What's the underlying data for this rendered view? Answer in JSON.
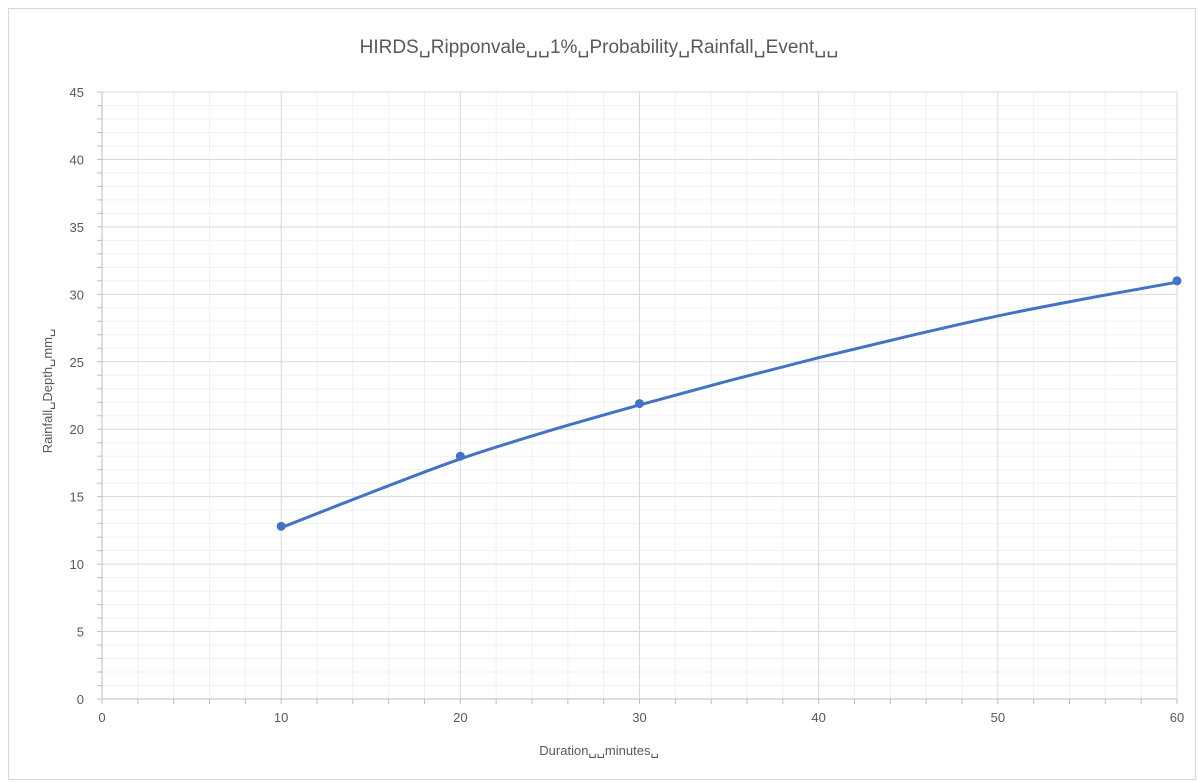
{
  "chart_data": {
    "type": "scatter",
    "title": "HIRDS␣Ripponvale␣␣1%␣Probability␣Rainfall␣Event␣␣",
    "xlabel": "Duration␣␣minutes␣",
    "ylabel": "Rainfall␣Depth␣mm␣",
    "xlim": [
      0,
      60
    ],
    "ylim": [
      0,
      45
    ],
    "x_major_step": 10,
    "x_minor_step": 2,
    "y_major_step": 5,
    "y_minor_step": 1,
    "x_ticks": [
      "0",
      "10",
      "20",
      "30",
      "40",
      "50",
      "60"
    ],
    "y_ticks": [
      "0",
      "5",
      "10",
      "15",
      "20",
      "25",
      "30",
      "35",
      "40",
      "45"
    ],
    "grid": true,
    "legend": "none",
    "series": [
      {
        "x": [
          10,
          20,
          30,
          60
        ],
        "y": [
          12.8,
          18.0,
          21.9,
          31.0
        ],
        "marker": "circle",
        "color": "#4472C4"
      }
    ],
    "trendline": {
      "type": "smooth curve",
      "color": "#4472C4",
      "x": [
        10,
        15,
        20,
        25,
        30,
        35,
        40,
        45,
        50,
        55,
        60
      ],
      "y": [
        12.7,
        15.3,
        17.8,
        19.9,
        21.8,
        23.6,
        25.3,
        26.9,
        28.4,
        29.7,
        30.9
      ]
    }
  }
}
